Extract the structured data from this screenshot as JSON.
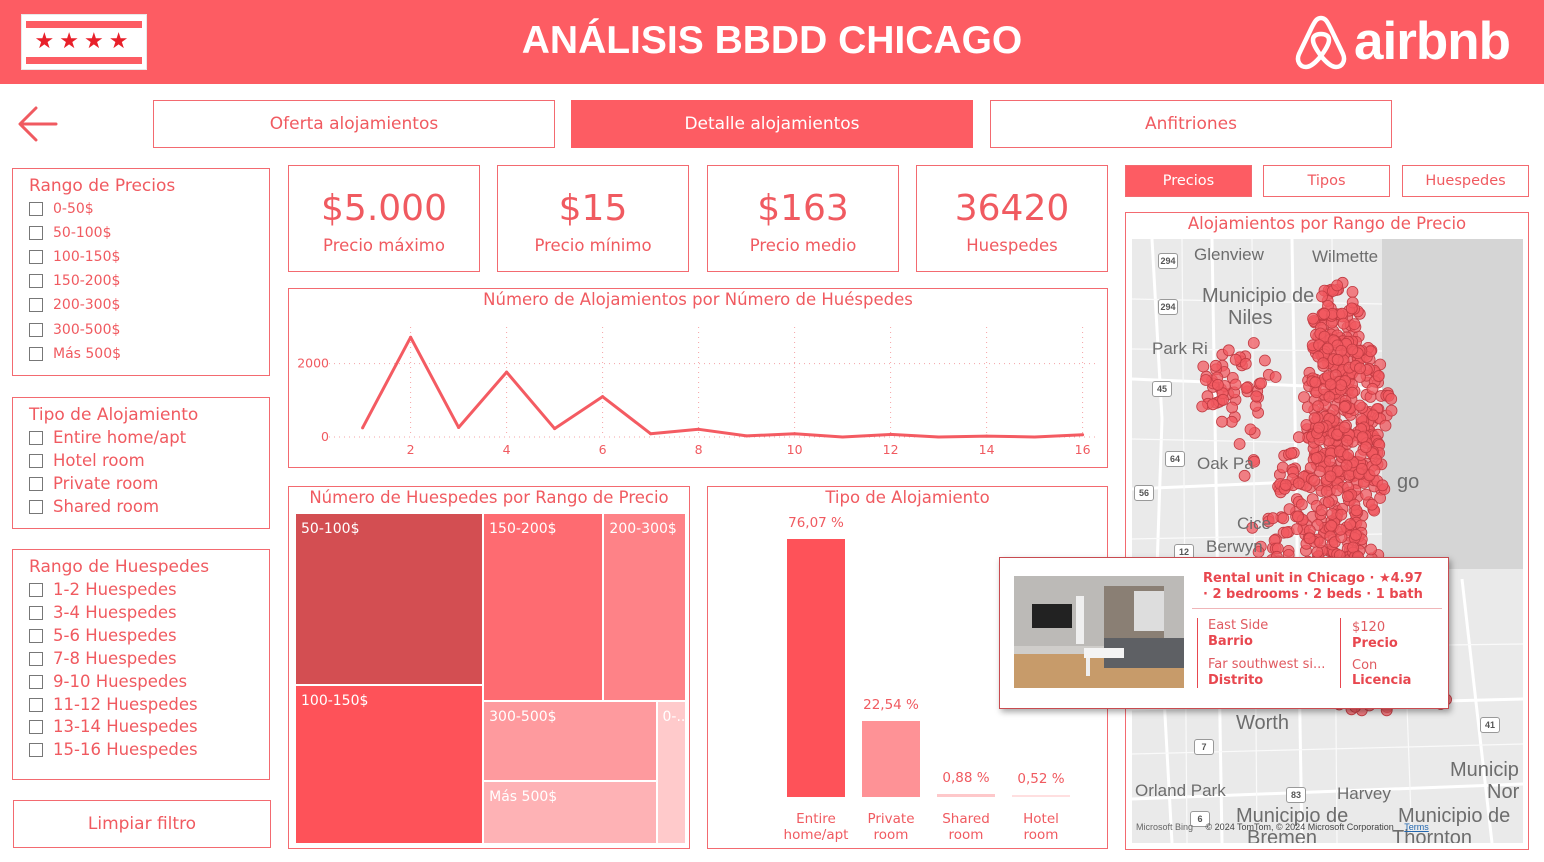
{
  "header": {
    "title": "ANÁLISIS BBDD CHICAGO",
    "logo_text": "airbnb",
    "flag_stars": "★★★★"
  },
  "nav": {
    "tabs": [
      {
        "label": "Oferta alojamientos",
        "active": false
      },
      {
        "label": "Detalle alojamientos",
        "active": true
      },
      {
        "label": "Anfitriones",
        "active": false
      }
    ]
  },
  "filters": {
    "price_range": {
      "title": "Rango de Precios",
      "options": [
        "0-50$",
        "50-100$",
        "100-150$",
        "150-200$",
        "200-300$",
        "300-500$",
        "Más 500$"
      ]
    },
    "room_type": {
      "title": "Tipo de Alojamiento",
      "options": [
        "Entire home/apt",
        "Hotel room",
        "Private room",
        "Shared room"
      ]
    },
    "guest_range": {
      "title": "Rango de Huespedes",
      "options": [
        "1-2 Huespedes",
        "3-4 Huespedes",
        "5-6 Huespedes",
        "7-8 Huespedes",
        "9-10 Huespedes",
        "11-12 Huespedes",
        "13-14 Huespedes",
        "15-16 Huespedes"
      ]
    },
    "clear_label": "Limpiar filtro"
  },
  "kpis": [
    {
      "value": "$5.000",
      "label": "Precio máximo"
    },
    {
      "value": "$15",
      "label": "Precio mínimo"
    },
    {
      "value": "$163",
      "label": "Precio medio"
    },
    {
      "value": "36420",
      "label": "Huespedes"
    }
  ],
  "view_tabs": [
    {
      "label": "Precios",
      "active": true
    },
    {
      "label": "Tipos",
      "active": false
    },
    {
      "label": "Huespedes",
      "active": false
    }
  ],
  "line_chart": {
    "title": "Número de Alojamientos por Número de Huéspedes",
    "chart_data": {
      "type": "line",
      "x": [
        1,
        2,
        3,
        4,
        5,
        6,
        7,
        8,
        9,
        10,
        11,
        12,
        13,
        14,
        15,
        16
      ],
      "y": [
        250,
        2720,
        260,
        1770,
        230,
        1100,
        90,
        210,
        30,
        90,
        0,
        70,
        0,
        25,
        0,
        60
      ],
      "x_ticks": [
        "2",
        "4",
        "6",
        "8",
        "10",
        "12",
        "14",
        "16"
      ],
      "y_ticks": [
        "0",
        "2000"
      ],
      "ylim": [
        0,
        3000
      ],
      "xlim": [
        0.3,
        16.3
      ],
      "color": "#f45b62"
    }
  },
  "treemap": {
    "title": "Número de Huespedes por Rango de Precio",
    "chart_data": {
      "type": "treemap",
      "categories": [
        "50-100$",
        "100-150$",
        "150-200$",
        "200-300$",
        "300-500$",
        "Más 500$",
        "0-..."
      ],
      "values": [
        8100,
        7500,
        5650,
        3880,
        3480,
        2750,
        1060
      ],
      "colors": [
        "#d34e52",
        "#fe5259",
        "#fe6b71",
        "#fe8287",
        "#fe9a9e",
        "#feb2b5",
        "#ffcacb"
      ]
    }
  },
  "bar_chart": {
    "title": "Tipo de Alojamiento",
    "chart_data": {
      "type": "bar",
      "categories": [
        "Entire home/apt",
        "Private room",
        "Shared room",
        "Hotel room"
      ],
      "category_lines": [
        [
          "Entire",
          "home/apt"
        ],
        [
          "Private",
          "room"
        ],
        [
          "Shared",
          "room"
        ],
        [
          "Hotel",
          "room"
        ]
      ],
      "values": [
        76.07,
        22.54,
        0.88,
        0.52
      ],
      "value_labels": [
        "76,07 %",
        "22,54 %",
        "0,88 %",
        "0,52 %"
      ],
      "colors": [
        "#fe5259",
        "#fe9296",
        "#fec8ca",
        "#ffdfe0"
      ],
      "ylim": [
        0,
        76.07
      ]
    }
  },
  "map": {
    "title": "Alojamientos por Rango de Precio",
    "labels": [
      "Glenview",
      "Wilmette",
      "Municipio de",
      "Niles",
      "Park Ri",
      "Oak Pa",
      "Cice",
      "Berwyn",
      "Worth",
      "Orland Park",
      "Harvey",
      "Municipio de",
      "Bremen",
      "Municip",
      "Nor",
      "Municipio de",
      "Thornton",
      "go"
    ],
    "shields": [
      "294",
      "294",
      "45",
      "64",
      "56",
      "12",
      "7",
      "83",
      "6",
      "41"
    ],
    "attribution": "© 2024 TomTom, © 2024 Microsoft Corporation",
    "terms": "Terms",
    "bing": "Microsoft Bing",
    "dot_color": "#f25960"
  },
  "tooltip": {
    "line1": "Rental unit in Chicago · ★4.97",
    "line2": "· 2 bedrooms · 2 beds · 1 bath",
    "neighbourhood_value": "East Side",
    "neighbourhood_label": "Barrio",
    "district_value": "Far southwest si...",
    "district_label": "Distrito",
    "price_value": "$120",
    "price_label": "Precio",
    "license_value": "Con",
    "license_label": "Licencia"
  }
}
